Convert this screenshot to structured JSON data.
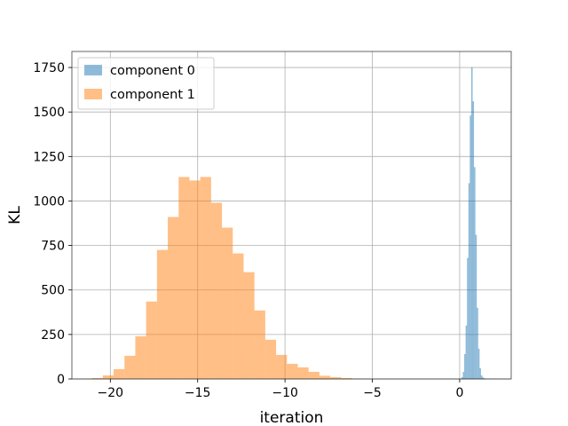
{
  "chart_data": {
    "type": "bar",
    "subtype": "histogram",
    "xlabel": "iteration",
    "ylabel": "KL",
    "xlim": [
      -22.2,
      2.95
    ],
    "ylim": [
      0,
      1840
    ],
    "x_ticks": [
      -20,
      -15,
      -10,
      -5,
      0
    ],
    "x_tick_labels": [
      "−20",
      "−15",
      "−10",
      "−5",
      "0"
    ],
    "y_ticks": [
      0,
      250,
      500,
      750,
      1000,
      1250,
      1500,
      1750
    ],
    "y_tick_labels": [
      "0",
      "250",
      "500",
      "750",
      "1000",
      "1250",
      "1500",
      "1750"
    ],
    "grid": true,
    "legend_position": "top-left",
    "colors": {
      "component_0": "#1f77b4",
      "component_1": "#ff7f0e"
    },
    "opacity": 0.5,
    "series": [
      {
        "name": "component 0",
        "bin_edges": [
          0.1,
          0.18,
          0.26,
          0.34,
          0.42,
          0.5,
          0.58,
          0.66,
          0.74,
          0.82,
          0.9,
          0.98,
          1.06,
          1.14,
          1.22,
          1.3,
          1.38,
          1.46,
          1.54,
          1.62,
          1.7,
          1.78,
          1.86
        ],
        "counts": [
          10,
          40,
          140,
          300,
          680,
          1100,
          1480,
          1750,
          1560,
          1190,
          810,
          400,
          170,
          60,
          20,
          8,
          4,
          2,
          1,
          1,
          1,
          1
        ]
      },
      {
        "name": "component 1",
        "bin_edges": [
          -21.05,
          -20.43,
          -19.81,
          -19.19,
          -18.57,
          -17.95,
          -17.33,
          -16.71,
          -16.09,
          -15.47,
          -14.85,
          -14.23,
          -13.61,
          -12.99,
          -12.37,
          -11.75,
          -11.13,
          -10.51,
          -9.89,
          -9.27,
          -8.65,
          -8.03,
          -7.41,
          -6.79,
          -6.17,
          -5.55
        ],
        "counts": [
          5,
          20,
          55,
          130,
          240,
          435,
          725,
          910,
          1135,
          1115,
          1135,
          990,
          850,
          705,
          600,
          385,
          220,
          135,
          85,
          65,
          40,
          18,
          10,
          5,
          2
        ]
      }
    ]
  }
}
